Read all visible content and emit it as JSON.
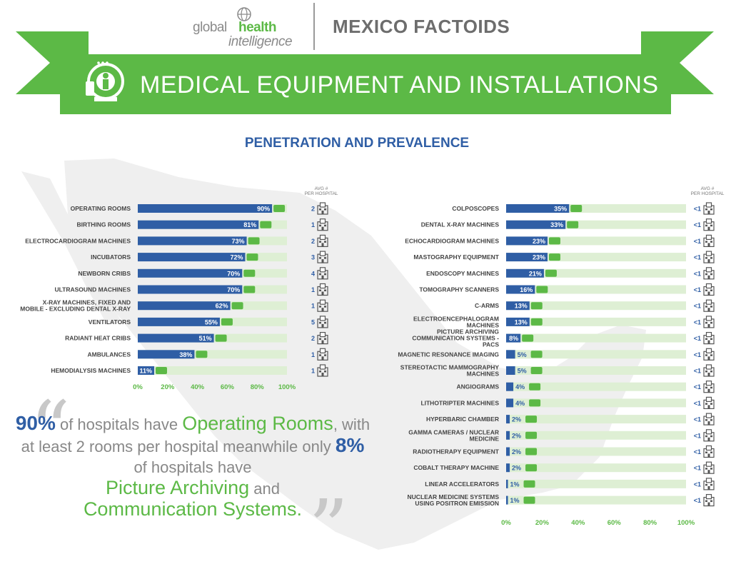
{
  "header": {
    "brand_global": "global",
    "brand_health": "health",
    "brand_intel": "intelligence",
    "factoids": "MEXICO FACTOIDS",
    "banner_title": "MEDICAL EQUIPMENT AND INSTALLATIONS",
    "section_title": "PENETRATION AND PREVALENCE"
  },
  "colors": {
    "green": "#5cb946",
    "blue": "#2f5ea5",
    "light_green": "#deefd4",
    "gray": "#888888"
  },
  "quote": {
    "p1_num": "90%",
    "p1_text": " of hospitals have ",
    "p1_green": "Operating Rooms",
    "p1_rest": ", with at least 2 rooms per hospital meanwhile only ",
    "p2_num": "8%",
    "p2_text": " of hospitals have ",
    "p2_green1": "Picture Archiving",
    "p2_and": " and ",
    "p2_green2": "Communication Systems."
  },
  "chart_data": [
    {
      "type": "bar",
      "orientation": "horizontal",
      "categories": [
        "OPERATING ROOMS",
        "BIRTHING ROOMS",
        "ELECTROCARDIOGRAM MACHINES",
        "INCUBATORS",
        "NEWBORN CRIBS",
        "ULTRASOUND MACHINES",
        "X-RAY MACHINES, FIXED AND MOBILE - EXCLUDING DENTAL X-RAY",
        "VENTILATORS",
        "RADIANT HEAT CRIBS",
        "AMBULANCES",
        "HEMODIALYSIS MACHINES"
      ],
      "values": [
        90,
        81,
        73,
        72,
        70,
        70,
        62,
        55,
        51,
        38,
        11
      ],
      "value_labels": [
        "90%",
        "81%",
        "73%",
        "72%",
        "70%",
        "70%",
        "62%",
        "55%",
        "51%",
        "38%",
        "11%"
      ],
      "avg_header": [
        "AVG #",
        "PER HOSPITAL"
      ],
      "avg_per_hospital": [
        "2",
        "1",
        "2",
        "3",
        "4",
        "1",
        "1",
        "5",
        "2",
        "1",
        "1"
      ],
      "icons": [
        "surgical-lamp-icon",
        "baby-icon",
        "ecg-icon",
        "incubator-icon",
        "crib-icon",
        "ultrasound-icon",
        "xray-icon",
        "ventilator-icon",
        "heat-lamp-icon",
        "ambulance-icon",
        "dialysis-icon"
      ],
      "xlim": [
        0,
        100
      ],
      "xticks": [
        "0%",
        "20%",
        "40%",
        "60%",
        "80%",
        "100%"
      ]
    },
    {
      "type": "bar",
      "orientation": "horizontal",
      "categories": [
        "COLPOSCOPES",
        "DENTAL X-RAY MACHINES",
        "ECHOCARDIOGRAM MACHINES",
        "MASTOGRAPHY EQUIPMENT",
        "ENDOSCOPY MACHINES",
        "TOMOGRAPHY SCANNERS",
        "C-ARMS",
        "ELECTROENCEPHALOGRAM MACHINES",
        "PICTURE ARCHIVING COMMUNICATION SYSTEMS - PACS",
        "MAGNETIC RESONANCE IMAGING",
        "STEREOTACTIC MAMMOGRAPHY MACHINES",
        "ANGIOGRAMS",
        "LITHOTRIPTER MACHINES",
        "HYPERBARIC CHAMBER",
        "GAMMA CAMERAS / NUCLEAR MEDICINE",
        "RADIOTHERAPY EQUIPMENT",
        "COBALT THERAPY MACHINE",
        "LINEAR ACCELERATORS",
        "NUCLEAR MEDICINE SYSTEMS USING POSITRON EMISSION"
      ],
      "values": [
        35,
        33,
        23,
        23,
        21,
        16,
        13,
        13,
        8,
        5,
        5,
        4,
        4,
        2,
        2,
        2,
        2,
        1,
        1
      ],
      "value_labels": [
        "35%",
        "33%",
        "23%",
        "23%",
        "21%",
        "16%",
        "13%",
        "13%",
        "8%",
        "5%",
        "5%",
        "4%",
        "4%",
        "2%",
        "2%",
        "2%",
        "2%",
        "1%",
        "1%"
      ],
      "avg_header": [
        "AVG #",
        "PER HOSPITAL"
      ],
      "avg_per_hospital": [
        "<1",
        "<1",
        "<1",
        "<1",
        "<1",
        "<1",
        "<1",
        "<1",
        "<1",
        "<1",
        "<1",
        "<1",
        "<1",
        "<1",
        "<1",
        "<1",
        "<1",
        "<1",
        "<1"
      ],
      "xlim": [
        0,
        100
      ],
      "xticks": [
        "0%",
        "20%",
        "40%",
        "60%",
        "80%",
        "100%"
      ]
    }
  ]
}
